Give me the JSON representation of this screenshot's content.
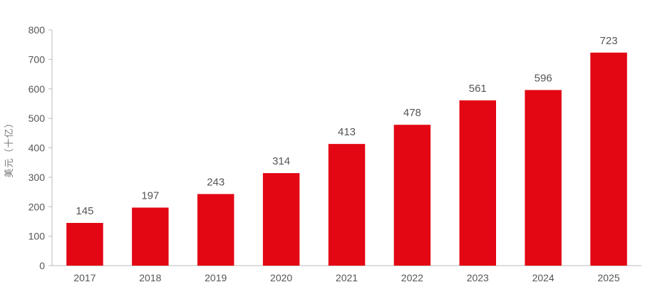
{
  "chart_data": {
    "type": "bar",
    "title": "",
    "xlabel": "",
    "ylabel": "美元（十亿）",
    "categories": [
      "2017",
      "2018",
      "2019",
      "2020",
      "2021",
      "2022",
      "2023",
      "2024",
      "2025"
    ],
    "series": [
      {
        "values": [
          145,
          197,
          243,
          314,
          413,
          478,
          561,
          596,
          723
        ]
      }
    ],
    "ylim": [
      0,
      800
    ],
    "yticks": [
      0,
      100,
      200,
      300,
      400,
      500,
      600,
      700,
      800
    ],
    "grid": false,
    "legend": "none",
    "bar_color": "#E30613",
    "axis_color": "#BBBBBB",
    "text_color": "#555555"
  }
}
